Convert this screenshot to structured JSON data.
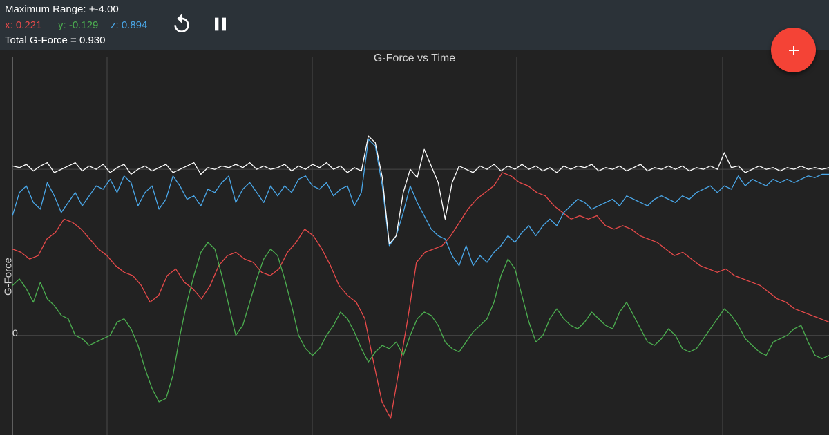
{
  "header": {
    "range_label": "Maximum Range: +-4.00",
    "x_reading": "x: 0.221",
    "y_reading": "y: -0.129",
    "z_reading": "z: 0.894",
    "total_label": "Total G-Force = 0.930"
  },
  "colors": {
    "toolbar": "#2b3238",
    "background": "#222222",
    "x": "#e84a4a",
    "y": "#4caf50",
    "z": "#4aa8ea",
    "total": "#ffffff",
    "fab": "#f44336"
  },
  "icons": {
    "reset": "replay-icon",
    "pause": "pause-icon",
    "add": "plus-icon"
  },
  "chart_data": {
    "type": "line",
    "title": "G-Force vs Time",
    "ylabel": "G-Force",
    "xlabel": "",
    "y_tick_labels": [
      {
        "value": 0,
        "label": "0"
      }
    ],
    "ylim": [
      -0.6,
      1.72
    ],
    "grid": true,
    "legend": "none",
    "series": [
      {
        "key": "total",
        "values": [
          1.02,
          1.01,
          1.03,
          0.99,
          1.02,
          1.04,
          0.98,
          1.0,
          1.02,
          1.04,
          0.99,
          1.02,
          1.0,
          1.03,
          0.98,
          1.01,
          1.03,
          0.97,
          1.0,
          1.02,
          0.99,
          1.01,
          1.03,
          0.98,
          1.0,
          1.02,
          1.04,
          0.97,
          1.01,
          1.0,
          1.02,
          1.01,
          1.03,
          1.01,
          1.04,
          1.0,
          1.02,
          1.0,
          1.01,
          1.03,
          0.99,
          1.02,
          1.0,
          1.03,
          1.01,
          1.04,
          1.0,
          1.02,
          0.98,
          1.01,
          0.99,
          1.2,
          1.16,
          0.95,
          0.55,
          0.6,
          0.86,
          1.0,
          0.95,
          1.12,
          1.02,
          0.92,
          0.7,
          0.92,
          1.02,
          1.0,
          0.98,
          1.02,
          1.0,
          1.03,
          0.99,
          1.02,
          1.0,
          1.03,
          1.0,
          1.02,
          0.99,
          1.01,
          0.98,
          1.02,
          1.0,
          1.02,
          1.01,
          1.03,
          0.99,
          1.01,
          1.0,
          1.02,
          0.99,
          1.01,
          1.03,
          0.99,
          1.01,
          1.0,
          1.02,
          1.0,
          1.02,
          0.99,
          1.01,
          1.0,
          1.02,
          1.0,
          1.1,
          1.01,
          1.02,
          0.98,
          1.0,
          1.02,
          1.0,
          1.01,
          0.99,
          1.01,
          1.0,
          1.02,
          1.0,
          1.01,
          1.0,
          1.01
        ]
      },
      {
        "key": "z",
        "values": [
          0.72,
          0.86,
          0.9,
          0.8,
          0.76,
          0.92,
          0.84,
          0.74,
          0.8,
          0.86,
          0.78,
          0.84,
          0.9,
          0.88,
          0.94,
          0.86,
          0.96,
          0.92,
          0.78,
          0.86,
          0.9,
          0.76,
          0.82,
          0.96,
          0.9,
          0.82,
          0.84,
          0.78,
          0.88,
          0.86,
          0.92,
          0.96,
          0.8,
          0.88,
          0.92,
          0.86,
          0.8,
          0.9,
          0.84,
          0.9,
          0.86,
          0.94,
          0.96,
          0.9,
          0.88,
          0.92,
          0.84,
          0.88,
          0.9,
          0.78,
          0.86,
          1.18,
          1.14,
          0.9,
          0.54,
          0.6,
          0.74,
          0.9,
          0.8,
          0.72,
          0.64,
          0.6,
          0.58,
          0.48,
          0.42,
          0.54,
          0.42,
          0.48,
          0.44,
          0.5,
          0.54,
          0.6,
          0.56,
          0.62,
          0.66,
          0.6,
          0.66,
          0.7,
          0.66,
          0.74,
          0.78,
          0.82,
          0.8,
          0.76,
          0.78,
          0.8,
          0.82,
          0.78,
          0.84,
          0.82,
          0.8,
          0.78,
          0.82,
          0.84,
          0.82,
          0.8,
          0.84,
          0.82,
          0.86,
          0.88,
          0.9,
          0.86,
          0.9,
          0.88,
          0.96,
          0.9,
          0.94,
          0.92,
          0.9,
          0.94,
          0.92,
          0.94,
          0.92,
          0.94,
          0.96,
          0.95,
          0.97,
          0.97
        ]
      },
      {
        "key": "x",
        "values": [
          0.52,
          0.5,
          0.46,
          0.48,
          0.58,
          0.62,
          0.7,
          0.68,
          0.64,
          0.58,
          0.52,
          0.48,
          0.42,
          0.38,
          0.36,
          0.3,
          0.2,
          0.24,
          0.36,
          0.4,
          0.32,
          0.28,
          0.22,
          0.3,
          0.42,
          0.48,
          0.5,
          0.46,
          0.44,
          0.38,
          0.36,
          0.4,
          0.5,
          0.56,
          0.64,
          0.6,
          0.52,
          0.42,
          0.3,
          0.24,
          0.2,
          0.1,
          -0.16,
          -0.4,
          -0.5,
          -0.2,
          0.1,
          0.44,
          0.5,
          0.52,
          0.54,
          0.6,
          0.68,
          0.76,
          0.82,
          0.86,
          0.9,
          0.98,
          0.96,
          0.92,
          0.9,
          0.86,
          0.84,
          0.78,
          0.74,
          0.7,
          0.72,
          0.7,
          0.72,
          0.66,
          0.64,
          0.66,
          0.64,
          0.6,
          0.58,
          0.56,
          0.52,
          0.48,
          0.5,
          0.46,
          0.42,
          0.4,
          0.38,
          0.4,
          0.36,
          0.34,
          0.32,
          0.3,
          0.26,
          0.22,
          0.2,
          0.16,
          0.14,
          0.12,
          0.1,
          0.08
        ]
      },
      {
        "key": "y",
        "values": [
          0.3,
          0.34,
          0.28,
          0.2,
          0.32,
          0.22,
          0.18,
          0.12,
          0.1,
          0.0,
          -0.02,
          -0.06,
          -0.04,
          -0.02,
          0.0,
          0.08,
          0.1,
          0.04,
          -0.06,
          -0.2,
          -0.32,
          -0.4,
          -0.38,
          -0.24,
          0.0,
          0.2,
          0.36,
          0.5,
          0.56,
          0.52,
          0.36,
          0.18,
          0.0,
          0.06,
          0.2,
          0.34,
          0.46,
          0.52,
          0.48,
          0.34,
          0.18,
          0.0,
          -0.08,
          -0.12,
          -0.08,
          0.0,
          0.06,
          0.14,
          0.1,
          0.02,
          -0.08,
          -0.16,
          -0.1,
          -0.06,
          -0.08,
          -0.04,
          -0.12,
          0.0,
          0.1,
          0.14,
          0.12,
          0.06,
          -0.04,
          -0.08,
          -0.1,
          -0.04,
          0.02,
          0.06,
          0.1,
          0.2,
          0.36,
          0.46,
          0.4,
          0.24,
          0.08,
          -0.04,
          0.0,
          0.1,
          0.16,
          0.1,
          0.06,
          0.04,
          0.08,
          0.14,
          0.1,
          0.06,
          0.04,
          0.14,
          0.2,
          0.12,
          0.04,
          -0.04,
          -0.06,
          -0.02,
          0.04,
          0.0,
          -0.08,
          -0.1,
          -0.08,
          -0.02,
          0.04,
          0.1,
          0.16,
          0.12,
          0.06,
          -0.02,
          -0.06,
          -0.1,
          -0.12,
          -0.04,
          -0.02,
          0.0,
          0.04,
          0.06,
          -0.04,
          -0.12,
          -0.14,
          -0.12
        ]
      }
    ]
  }
}
